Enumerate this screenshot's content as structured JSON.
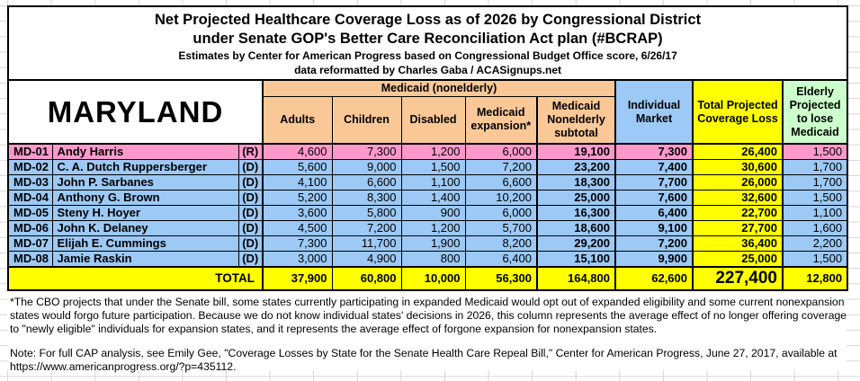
{
  "title": {
    "line1": "Net Projected Healthcare Coverage Loss as of 2026 by Congressional District",
    "line2": "under Senate GOP's Better Care Reconciliation Act plan (#BCRAP)",
    "line3": "Estimates by Center for American Progress based on Congressional Budget Office score, 6/26/17",
    "line4": "data reformatted by Charles Gaba / ACASignups.net"
  },
  "state_label": "MARYLAND",
  "header": {
    "medicaid_group": "Medicaid (nonelderly)",
    "columns": [
      "Adults",
      "Children",
      "Disabled",
      "Medicaid expansion*",
      "Medicaid Nonelderly subtotal"
    ],
    "individual_market": "Individual Market",
    "total_loss": "Total Projected Coverage Loss",
    "elderly": "Elderly Projected to lose Medicaid"
  },
  "rows": [
    {
      "district": "MD-01",
      "name": "Andy Harris",
      "party": "(R)",
      "color_class": "pink",
      "adults": "4,600",
      "children": "7,300",
      "disabled": "1,200",
      "expansion": "6,000",
      "subtotal": "19,100",
      "market": "7,300",
      "total": "26,400",
      "elderly": "1,500"
    },
    {
      "district": "MD-02",
      "name": "C. A. Dutch Ruppersberger",
      "party": "(D)",
      "color_class": "blue",
      "adults": "5,600",
      "children": "9,000",
      "disabled": "1,500",
      "expansion": "7,200",
      "subtotal": "23,200",
      "market": "7,400",
      "total": "30,600",
      "elderly": "1,700"
    },
    {
      "district": "MD-03",
      "name": "John P. Sarbanes",
      "party": "(D)",
      "color_class": "blue",
      "adults": "4,100",
      "children": "6,600",
      "disabled": "1,100",
      "expansion": "6,600",
      "subtotal": "18,300",
      "market": "7,700",
      "total": "26,000",
      "elderly": "1,700"
    },
    {
      "district": "MD-04",
      "name": "Anthony G. Brown",
      "party": "(D)",
      "color_class": "blue",
      "adults": "5,200",
      "children": "8,300",
      "disabled": "1,400",
      "expansion": "10,200",
      "subtotal": "25,000",
      "market": "7,600",
      "total": "32,600",
      "elderly": "1,500"
    },
    {
      "district": "MD-05",
      "name": "Steny H. Hoyer",
      "party": "(D)",
      "color_class": "blue",
      "adults": "3,600",
      "children": "5,800",
      "disabled": "900",
      "expansion": "6,000",
      "subtotal": "16,300",
      "market": "6,400",
      "total": "22,700",
      "elderly": "1,100"
    },
    {
      "district": "MD-06",
      "name": "John K. Delaney",
      "party": "(D)",
      "color_class": "blue",
      "adults": "4,500",
      "children": "7,200",
      "disabled": "1,200",
      "expansion": "5,700",
      "subtotal": "18,600",
      "market": "9,100",
      "total": "27,700",
      "elderly": "1,600"
    },
    {
      "district": "MD-07",
      "name": "Elijah E. Cummings",
      "party": "(D)",
      "color_class": "blue",
      "adults": "7,300",
      "children": "11,700",
      "disabled": "1,900",
      "expansion": "8,200",
      "subtotal": "29,200",
      "market": "7,200",
      "total": "36,400",
      "elderly": "2,200"
    },
    {
      "district": "MD-08",
      "name": "Jamie Raskin",
      "party": "(D)",
      "color_class": "blue",
      "adults": "3,000",
      "children": "4,900",
      "disabled": "800",
      "expansion": "6,400",
      "subtotal": "15,100",
      "market": "9,900",
      "total": "25,000",
      "elderly": "1,500"
    }
  ],
  "total_row": {
    "label": "TOTAL",
    "adults": "37,900",
    "children": "60,800",
    "disabled": "10,000",
    "expansion": "56,300",
    "subtotal": "164,800",
    "market": "62,600",
    "total": "227,400",
    "elderly": "12,800"
  },
  "footnote": "*The CBO projects that under the Senate bill, some states currently participating in expanded Medicaid would opt out of expanded eligibility and some current nonexpansion states would forgo future participation. Because we do not know individual states' decisions in 2026, this column represents the average effect of no longer offering coverage to \"newly eligible\" individuals for expansion states, and it represents the average effect of forgone expansion for nonexpansion states.",
  "note": "Note: For full CAP analysis, see Emily Gee, \"Coverage Losses by State for the Senate Health Care Repeal Bill,\" Center for American Progress, June 27, 2017, available at https://www.americanprogress.org/?p=435112.",
  "colors": {
    "republican_row": "#FF99CC",
    "democrat_row": "#9CC9F5",
    "medicaid_header": "#F9C896",
    "total_column": "#FFFF00",
    "elderly_header": "#CCFFCC",
    "gridline": "#d6d6d6",
    "border": "#000000"
  }
}
